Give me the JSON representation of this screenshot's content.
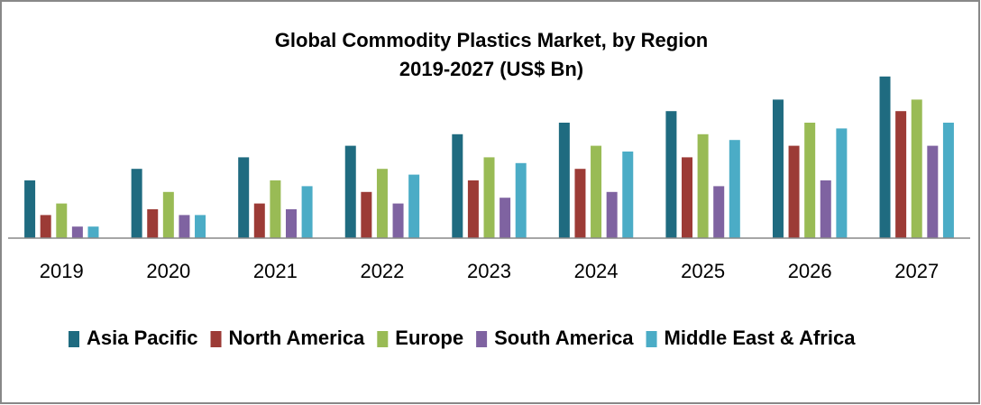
{
  "chart_data": {
    "type": "bar",
    "title": "Global Commodity Plastics Market, by Region",
    "subtitle": "2019-2027 (US$ Bn)",
    "categories": [
      "2019",
      "2020",
      "2021",
      "2022",
      "2023",
      "2024",
      "2025",
      "2026",
      "2027"
    ],
    "series": [
      {
        "name": "Asia Pacific",
        "color": "#1f6b80",
        "values": [
          5,
          6,
          7,
          8,
          9,
          10,
          11,
          12,
          14
        ]
      },
      {
        "name": "North America",
        "color": "#9c3b36",
        "values": [
          2,
          2.5,
          3,
          4,
          5,
          6,
          7,
          8,
          11
        ]
      },
      {
        "name": "Europe",
        "color": "#99bb55",
        "values": [
          3,
          4,
          5,
          6,
          7,
          8,
          9,
          10,
          12
        ]
      },
      {
        "name": "South America",
        "color": "#7f63a1",
        "values": [
          1,
          2,
          2.5,
          3,
          3.5,
          4,
          4.5,
          5,
          8
        ]
      },
      {
        "name": "Middle East & Africa",
        "color": "#4bacc6",
        "values": [
          1,
          2,
          4.5,
          5.5,
          6.5,
          7.5,
          8.5,
          9.5,
          10
        ]
      }
    ],
    "ylim": [
      0,
      15
    ],
    "legend": "bottom"
  }
}
